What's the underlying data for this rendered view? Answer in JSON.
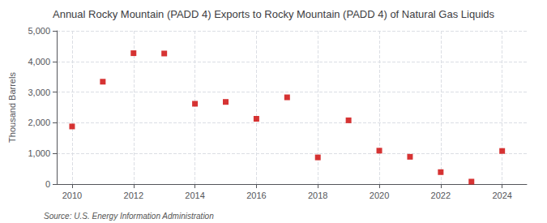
{
  "chart_data": {
    "type": "scatter",
    "title": "Annual Rocky Mountain (PADD 4) Exports to Rocky Mountain (PADD 4) of Natural Gas Liquids",
    "ylabel": "Thousand Barrels",
    "source": "Source: U.S. Energy Information Administration",
    "x": [
      2010,
      2011,
      2012,
      2013,
      2014,
      2015,
      2016,
      2017,
      2018,
      2019,
      2020,
      2021,
      2022,
      2023,
      2024
    ],
    "values": [
      1880,
      3340,
      4270,
      4260,
      2620,
      2680,
      2130,
      2830,
      870,
      2080,
      1090,
      890,
      390,
      80,
      1080
    ],
    "color": "#cc0000",
    "marker": "square",
    "xlim": [
      2009.5,
      2024.8
    ],
    "xticks": [
      2010,
      2012,
      2014,
      2016,
      2018,
      2020,
      2022,
      2024
    ],
    "ylim": [
      0,
      5000
    ],
    "yticks": [
      0,
      {
        "value": 1000,
        "label": "1,000"
      },
      {
        "value": 2000,
        "label": "2,000"
      },
      {
        "value": 3000,
        "label": "3,000"
      },
      {
        "value": 4000,
        "label": "4,000"
      },
      {
        "value": 5000,
        "label": "5,000"
      }
    ],
    "grid": true
  }
}
